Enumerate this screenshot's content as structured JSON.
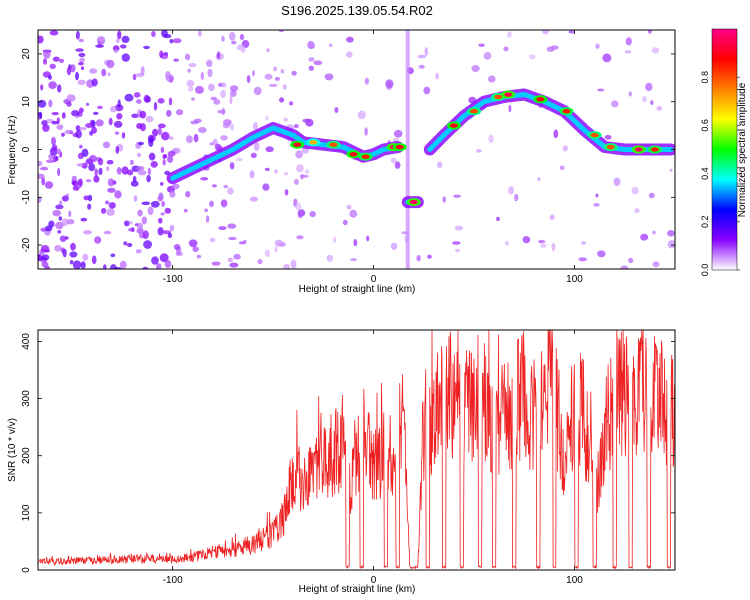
{
  "figure_title": "S196.2025.139.05.54.R02",
  "chart_data": [
    {
      "type": "heatmap",
      "title": "S196.2025.139.05.54.R02",
      "xlabel": "Height of straight line (km)",
      "ylabel": "Frequency (Hz)",
      "xlim": [
        -167,
        150
      ],
      "ylim": [
        -25,
        25
      ],
      "xticks": [
        -100,
        0,
        100
      ],
      "yticks": [
        -20,
        -10,
        0,
        10,
        20
      ],
      "colorbar": {
        "label": "Normalized spectral amplitude",
        "range": [
          0.0,
          1.0
        ],
        "ticks": [
          "0.0",
          "0.2",
          "0.4",
          "0.6",
          "0.8"
        ],
        "colors": [
          "#ffffff",
          "#8800ff",
          "#0000ff",
          "#00ffff",
          "#00ff00",
          "#ffff00",
          "#ff8000",
          "#ff0000",
          "#ff0088"
        ]
      },
      "ridge": {
        "name": "",
        "points": [
          {
            "x": -100,
            "y": -6
          },
          {
            "x": -90,
            "y": -4
          },
          {
            "x": -80,
            "y": -2
          },
          {
            "x": -70,
            "y": 0
          },
          {
            "x": -60,
            "y": 2.5
          },
          {
            "x": -50,
            "y": 4.5
          },
          {
            "x": -40,
            "y": 3
          },
          {
            "x": -35,
            "y": 1.5
          },
          {
            "x": -25,
            "y": 1
          },
          {
            "x": -15,
            "y": 0.5
          },
          {
            "x": -5,
            "y": -1.5
          },
          {
            "x": 0,
            "y": -1
          },
          {
            "x": 5,
            "y": 0
          },
          {
            "x": 12,
            "y": 0.5
          },
          {
            "x": 15,
            "y": null
          },
          {
            "x": 17,
            "y": -11
          },
          {
            "x": 22,
            "y": -11
          },
          {
            "x": 25,
            "y": null
          },
          {
            "x": 28,
            "y": 0
          },
          {
            "x": 35,
            "y": 3
          },
          {
            "x": 45,
            "y": 7
          },
          {
            "x": 55,
            "y": 10
          },
          {
            "x": 65,
            "y": 11
          },
          {
            "x": 75,
            "y": 11.5
          },
          {
            "x": 85,
            "y": 10
          },
          {
            "x": 95,
            "y": 8
          },
          {
            "x": 105,
            "y": 4
          },
          {
            "x": 115,
            "y": 0.5
          },
          {
            "x": 125,
            "y": 0
          },
          {
            "x": 135,
            "y": 0
          },
          {
            "x": 148,
            "y": 0
          }
        ]
      },
      "peaks": [
        {
          "x": -38,
          "y": 1,
          "amp": 0.9
        },
        {
          "x": -30,
          "y": 1.5,
          "amp": 0.7
        },
        {
          "x": -20,
          "y": 1,
          "amp": 0.8
        },
        {
          "x": -10,
          "y": -1,
          "amp": 0.9
        },
        {
          "x": -4,
          "y": -1.5,
          "amp": 0.85
        },
        {
          "x": 10,
          "y": 0.5,
          "amp": 0.95
        },
        {
          "x": 13,
          "y": 0.5,
          "amp": 0.9
        },
        {
          "x": 20,
          "y": -11,
          "amp": 0.95
        },
        {
          "x": 40,
          "y": 5,
          "amp": 0.9
        },
        {
          "x": 50,
          "y": 8,
          "amp": 0.8
        },
        {
          "x": 62,
          "y": 11,
          "amp": 0.8
        },
        {
          "x": 67,
          "y": 11.5,
          "amp": 0.95
        },
        {
          "x": 83,
          "y": 10.5,
          "amp": 0.9
        },
        {
          "x": 96,
          "y": 8,
          "amp": 0.85
        },
        {
          "x": 110,
          "y": 3,
          "amp": 0.8
        },
        {
          "x": 118,
          "y": 0.5,
          "amp": 0.8
        },
        {
          "x": 132,
          "y": 0,
          "amp": 0.95
        },
        {
          "x": 140,
          "y": 0,
          "amp": 0.85
        }
      ]
    },
    {
      "type": "line",
      "xlabel": "Height of straight line (km)",
      "ylabel": "SNR (10 * v/v)",
      "xlim": [
        -167,
        150
      ],
      "ylim": [
        0,
        420
      ],
      "xticks": [
        -100,
        0,
        100
      ],
      "yticks": [
        0,
        100,
        200,
        300,
        400
      ],
      "color": "#ee2222",
      "series": [
        {
          "name": "",
          "x": [
            -167,
            -150,
            -130,
            -110,
            -100,
            -90,
            -80,
            -70,
            -60,
            -50,
            -45,
            -40,
            -35,
            -30,
            -25,
            -20,
            -15,
            -12,
            -8,
            -5,
            0,
            5,
            10,
            15,
            18,
            22,
            25,
            30,
            35,
            40,
            45,
            50,
            55,
            60,
            65,
            70,
            75,
            80,
            85,
            88,
            92,
            95,
            100,
            105,
            110,
            113,
            116,
            120,
            125,
            130,
            135,
            140,
            145,
            150
          ],
          "y": [
            15,
            18,
            20,
            22,
            20,
            25,
            35,
            40,
            50,
            70,
            100,
            180,
            170,
            200,
            230,
            220,
            250,
            160,
            240,
            260,
            200,
            230,
            220,
            300,
            5,
            5,
            280,
            300,
            330,
            340,
            320,
            340,
            320,
            250,
            300,
            320,
            340,
            300,
            310,
            420,
            300,
            200,
            320,
            300,
            150,
            200,
            300,
            330,
            340,
            310,
            350,
            330,
            320,
            300
          ]
        }
      ],
      "dropouts": [
        -13,
        -6,
        6,
        12,
        20,
        27,
        35,
        44,
        53,
        60,
        70,
        82,
        90,
        101,
        110,
        120,
        128,
        137,
        147
      ]
    }
  ]
}
